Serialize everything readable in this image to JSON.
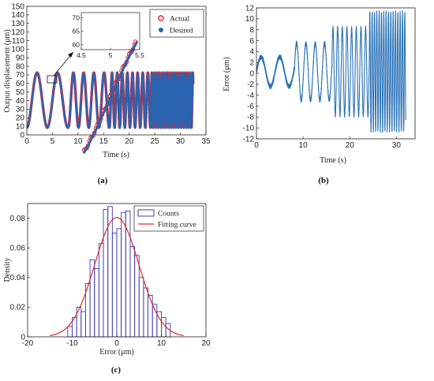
{
  "chart_data": [
    {
      "id": "a",
      "type": "line",
      "caption": "(a)",
      "xlabel": "Time (s)",
      "ylabel": "Output displacement (μm)",
      "xlim": [
        0,
        35
      ],
      "ylim": [
        0,
        150
      ],
      "xticks": [
        0,
        5,
        10,
        15,
        20,
        25,
        30,
        35
      ],
      "yticks": [
        0,
        10,
        20,
        30,
        40,
        50,
        60,
        70,
        80,
        90,
        100,
        110,
        120,
        130,
        140,
        150
      ],
      "grid": false,
      "legend_position": "top-right",
      "series": [
        {
          "name": "Actual",
          "style": "red-circle-markers",
          "color": "#e8262a"
        },
        {
          "name": "Desired",
          "style": "blue-dot-markers",
          "color": "#2a63b0"
        }
      ],
      "signal": {
        "center": 40,
        "amplitude": 32,
        "end_time": 32.5,
        "segments": [
          {
            "start": 0,
            "end": 8.2,
            "period": 4
          },
          {
            "start": 8.2,
            "end": 16.2,
            "period": 2
          },
          {
            "start": 16.2,
            "end": 24.2,
            "period": 1
          },
          {
            "start": 24.2,
            "end": 32.5,
            "period": 0.5
          }
        ]
      },
      "inset": {
        "xlim": [
          4.5,
          5.5
        ],
        "ylim": [
          58,
          72
        ],
        "xticks": [
          4.5,
          5,
          5.5
        ],
        "yticks": [
          60,
          65,
          70
        ]
      }
    },
    {
      "id": "b",
      "type": "line",
      "caption": "(b)",
      "xlabel": "Time (s)",
      "ylabel": "Error (μm)",
      "xlim": [
        0,
        34
      ],
      "ylim": [
        -12,
        12
      ],
      "xticks": [
        0,
        10,
        20,
        30
      ],
      "yticks": [
        -12,
        -10,
        -8,
        -6,
        -4,
        -2,
        0,
        2,
        4,
        6,
        8,
        10,
        12
      ],
      "grid": false,
      "color": "#2a72b8",
      "error_amplitude": [
        {
          "start": 0,
          "end": 8.2,
          "period": 4,
          "amplitude": 2.7,
          "offset": 0.3
        },
        {
          "start": 8.2,
          "end": 16.2,
          "period": 2,
          "amplitude": 5.2,
          "offset": 0.3
        },
        {
          "start": 16.2,
          "end": 24.2,
          "period": 1,
          "amplitude": 8,
          "offset": 0.3
        },
        {
          "start": 24.2,
          "end": 32,
          "period": 0.5,
          "amplitude": 10.8,
          "offset": 0.3
        }
      ]
    },
    {
      "id": "c",
      "type": "bar",
      "caption": "(c)",
      "xlabel": "Error (μm)",
      "ylabel": "Density",
      "xlim": [
        -20,
        20
      ],
      "ylim": [
        0,
        0.09
      ],
      "xticks": [
        -20,
        -10,
        0,
        10,
        20
      ],
      "yticks": [
        0,
        0.02,
        0.04,
        0.06,
        0.08
      ],
      "grid": false,
      "legend_position": "top-right",
      "series": [
        {
          "name": "Counts",
          "color": "#3b3bb0"
        },
        {
          "name": "Fitting curve",
          "color": "#e8262a"
        }
      ],
      "bin_edges": [
        -11,
        -10,
        -9,
        -8,
        -7,
        -6,
        -5,
        -4,
        -3,
        -2,
        -1,
        0,
        1,
        2,
        3,
        4,
        5,
        6,
        7,
        8,
        9,
        10,
        11,
        12
      ],
      "densities": [
        0.007,
        0.013,
        0.02,
        0.017,
        0.036,
        0.052,
        0.046,
        0.063,
        0.086,
        0.088,
        0.07,
        0.073,
        0.084,
        0.085,
        0.061,
        0.055,
        0.04,
        0.033,
        0.028,
        0.022,
        0.017,
        0.013,
        0.009
      ],
      "fit": {
        "mean": 0,
        "std": 4.95,
        "range": [
          -15,
          15
        ]
      }
    }
  ]
}
